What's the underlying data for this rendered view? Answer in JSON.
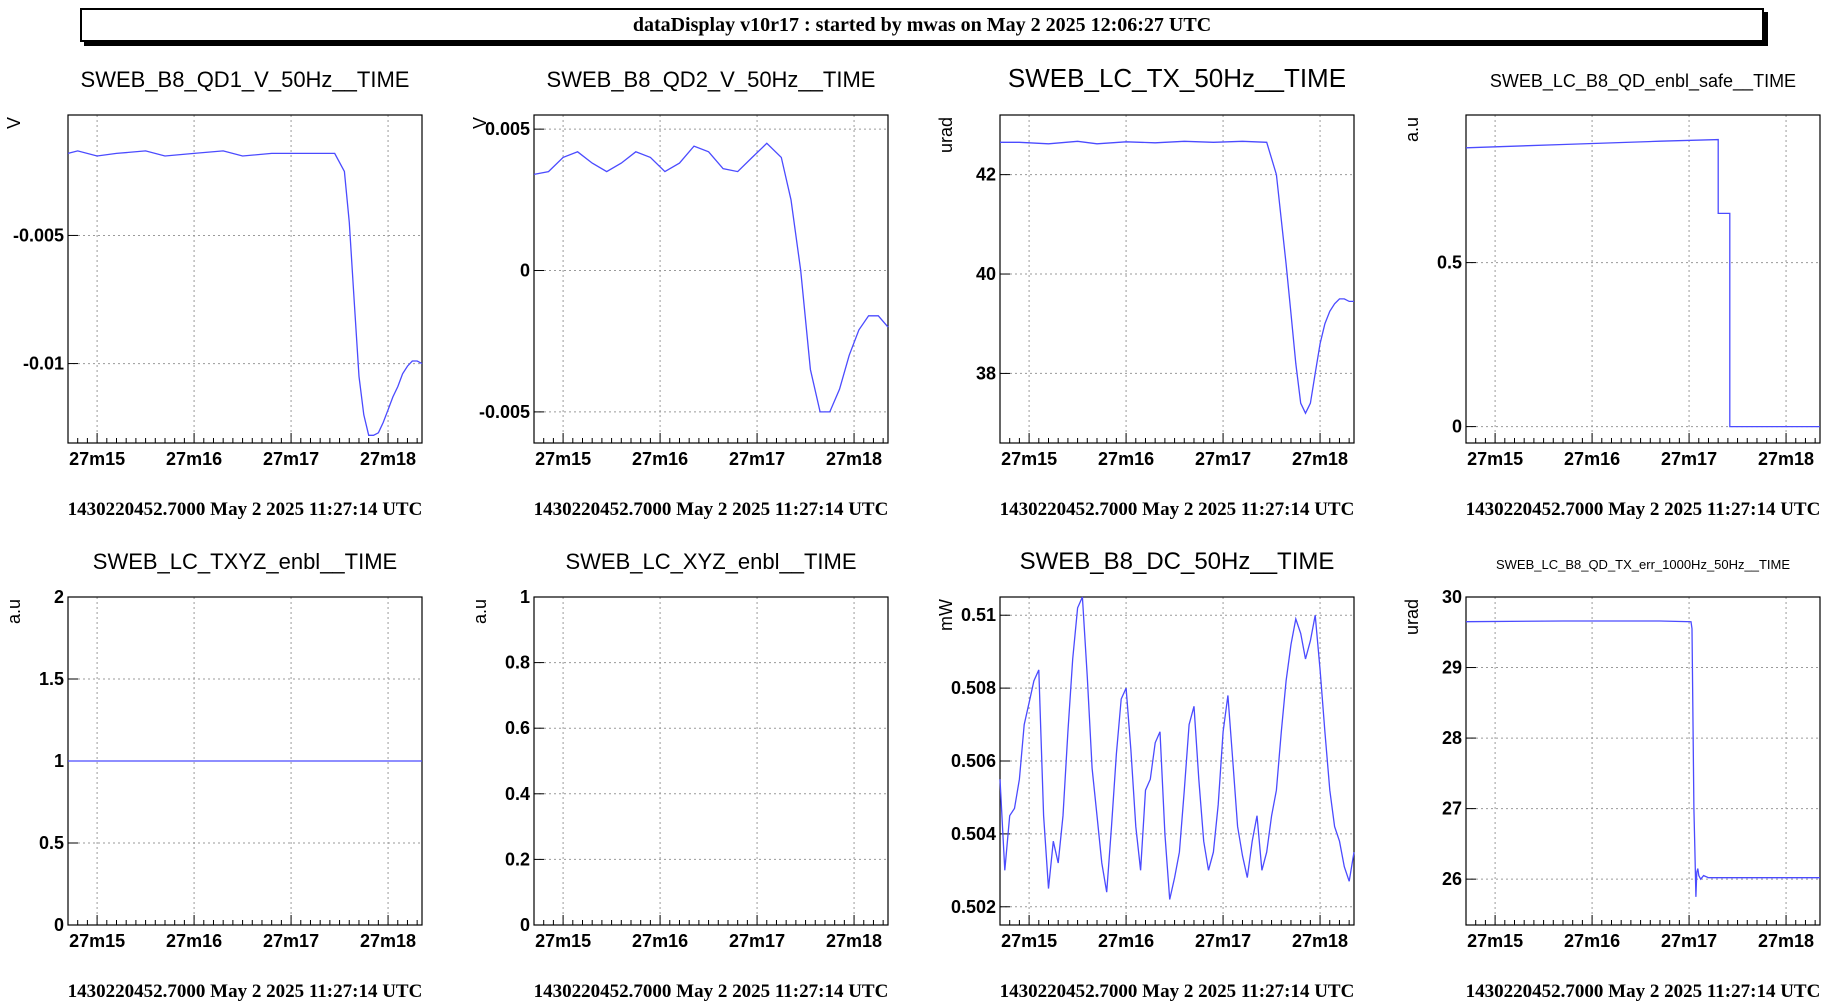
{
  "header": {
    "title": "dataDisplay v10r17 : started by mwas on May  2 2025 12:06:27 UTC"
  },
  "style": {
    "line_color": "#4b4bff",
    "grid_color": "#9a9a9a",
    "axis_color": "#000000"
  },
  "panels": [
    {
      "title": "SWEB_B8_QD1_V_50Hz__TIME",
      "ylabel": "V",
      "footer": "1430220452.7000 May 2 2025 11:27:14 UTC",
      "chart_data": {
        "type": "line",
        "ylim": [
          -0.0131,
          -0.0003
        ],
        "yticks": [
          -0.005,
          -0.01
        ],
        "ytick_labels": [
          "-0.005",
          "-0.01"
        ],
        "xlim": [
          0,
          3.65
        ],
        "xticks": [
          0.3,
          1.3,
          2.3,
          3.3
        ],
        "xtick_labels": [
          "27m15",
          "27m16",
          "27m17",
          "27m18"
        ],
        "grid": true,
        "x": [
          0,
          0.1,
          0.3,
          0.5,
          0.8,
          1.0,
          1.3,
          1.6,
          1.8,
          2.1,
          2.4,
          2.75,
          2.85,
          2.9,
          2.95,
          3.0,
          3.05,
          3.1,
          3.15,
          3.2,
          3.25,
          3.3,
          3.35,
          3.4,
          3.45,
          3.5,
          3.55,
          3.6,
          3.65
        ],
        "y": [
          -0.0018,
          -0.0017,
          -0.0019,
          -0.0018,
          -0.0017,
          -0.0019,
          -0.0018,
          -0.0017,
          -0.0019,
          -0.0018,
          -0.0018,
          -0.0018,
          -0.0025,
          -0.0045,
          -0.0075,
          -0.0105,
          -0.012,
          -0.0128,
          -0.0128,
          -0.0127,
          -0.0123,
          -0.0118,
          -0.0113,
          -0.0109,
          -0.0104,
          -0.0101,
          -0.0099,
          -0.0099,
          -0.01
        ]
      }
    },
    {
      "title": "SWEB_B8_QD2_V_50Hz__TIME",
      "ylabel": "V",
      "footer": "1430220452.7000 May 2 2025 11:27:14 UTC",
      "chart_data": {
        "type": "line",
        "ylim": [
          -0.0061,
          0.0055
        ],
        "yticks": [
          0.005,
          0,
          -0.005
        ],
        "ytick_labels": [
          "0.005",
          "0",
          "-0.005"
        ],
        "xlim": [
          0,
          3.65
        ],
        "xticks": [
          0.3,
          1.3,
          2.3,
          3.3
        ],
        "xtick_labels": [
          "27m15",
          "27m16",
          "27m17",
          "27m18"
        ],
        "grid": true,
        "x": [
          0,
          0.15,
          0.3,
          0.45,
          0.6,
          0.75,
          0.9,
          1.05,
          1.2,
          1.35,
          1.5,
          1.65,
          1.8,
          1.95,
          2.1,
          2.25,
          2.4,
          2.55,
          2.65,
          2.75,
          2.85,
          2.95,
          3.05,
          3.15,
          3.25,
          3.35,
          3.45,
          3.55,
          3.65
        ],
        "y": [
          0.0034,
          0.0035,
          0.004,
          0.0042,
          0.0038,
          0.0035,
          0.0038,
          0.0042,
          0.004,
          0.0035,
          0.0038,
          0.0044,
          0.0042,
          0.0036,
          0.0035,
          0.004,
          0.0045,
          0.004,
          0.0025,
          0.0,
          -0.0035,
          -0.005,
          -0.005,
          -0.0042,
          -0.003,
          -0.0021,
          -0.0016,
          -0.0016,
          -0.002
        ]
      }
    },
    {
      "title": "SWEB_LC_TX_50Hz__TIME",
      "ylabel": "urad",
      "footer": "1430220452.7000 May 2 2025 11:27:14 UTC",
      "chart_data": {
        "type": "line",
        "ylim": [
          36.6,
          43.2
        ],
        "yticks": [
          42,
          40,
          38
        ],
        "ytick_labels": [
          "42",
          "40",
          "38"
        ],
        "xlim": [
          0,
          3.65
        ],
        "xticks": [
          0.3,
          1.3,
          2.3,
          3.3
        ],
        "xtick_labels": [
          "27m15",
          "27m16",
          "27m17",
          "27m18"
        ],
        "grid": true,
        "x": [
          0,
          0.2,
          0.5,
          0.8,
          1.0,
          1.3,
          1.6,
          1.9,
          2.2,
          2.5,
          2.75,
          2.85,
          2.95,
          3.0,
          3.05,
          3.1,
          3.15,
          3.2,
          3.25,
          3.3,
          3.35,
          3.4,
          3.45,
          3.5,
          3.55,
          3.6,
          3.65
        ],
        "y": [
          42.65,
          42.65,
          42.62,
          42.67,
          42.62,
          42.66,
          42.64,
          42.67,
          42.65,
          42.67,
          42.65,
          42.0,
          40.2,
          39.2,
          38.2,
          37.4,
          37.2,
          37.4,
          38.0,
          38.6,
          39.0,
          39.25,
          39.4,
          39.5,
          39.5,
          39.45,
          39.45
        ]
      }
    },
    {
      "title": "SWEB_LC_B8_QD_enbl_safe__TIME",
      "ylabel": "a.u",
      "footer": "1430220452.7000 May 2 2025 11:27:14 UTC",
      "chart_data": {
        "type": "line",
        "ylim": [
          -0.05,
          0.95
        ],
        "yticks": [
          0.5,
          0
        ],
        "ytick_labels": [
          "0.5",
          "0"
        ],
        "xlim": [
          0,
          3.65
        ],
        "xticks": [
          0.3,
          1.3,
          2.3,
          3.3
        ],
        "xtick_labels": [
          "27m15",
          "27m16",
          "27m17",
          "27m18"
        ],
        "grid": true,
        "x": [
          0,
          1.0,
          2.0,
          2.6,
          2.6,
          2.72,
          2.72,
          3.65
        ],
        "y": [
          0.85,
          0.86,
          0.87,
          0.875,
          0.65,
          0.65,
          0.0,
          0.0
        ]
      }
    },
    {
      "title": "SWEB_LC_TXYZ_enbl__TIME",
      "ylabel": "a.u",
      "footer": "1430220452.7000 May 2 2025 11:27:14 UTC",
      "chart_data": {
        "type": "line",
        "ylim": [
          0,
          2
        ],
        "yticks": [
          2,
          1.5,
          1,
          0.5,
          0
        ],
        "ytick_labels": [
          "2",
          "1.5",
          "1",
          "0.5",
          "0"
        ],
        "xlim": [
          0,
          3.65
        ],
        "xticks": [
          0.3,
          1.3,
          2.3,
          3.3
        ],
        "xtick_labels": [
          "27m15",
          "27m16",
          "27m17",
          "27m18"
        ],
        "grid": true,
        "x": [
          0,
          3.65
        ],
        "y": [
          1,
          1
        ]
      }
    },
    {
      "title": "SWEB_LC_XYZ_enbl__TIME",
      "ylabel": "a.u",
      "footer": "1430220452.7000 May 2 2025 11:27:14 UTC",
      "chart_data": {
        "type": "line",
        "ylim": [
          0,
          1
        ],
        "yticks": [
          1,
          0.8,
          0.6,
          0.4,
          0.2,
          0
        ],
        "ytick_labels": [
          "1",
          "0.8",
          "0.6",
          "0.4",
          "0.2",
          "0"
        ],
        "xlim": [
          0,
          3.65
        ],
        "xticks": [
          0.3,
          1.3,
          2.3,
          3.3
        ],
        "xtick_labels": [
          "27m15",
          "27m16",
          "27m17",
          "27m18"
        ],
        "grid": true,
        "x": [],
        "y": []
      }
    },
    {
      "title": "SWEB_B8_DC_50Hz__TIME",
      "ylabel": "mW",
      "footer": "1430220452.7000 May 2 2025 11:27:14 UTC",
      "chart_data": {
        "type": "line",
        "ylim": [
          0.5015,
          0.5105
        ],
        "yticks": [
          0.51,
          0.508,
          0.506,
          0.504,
          0.502
        ],
        "ytick_labels": [
          "0.51",
          "0.508",
          "0.506",
          "0.504",
          "0.502"
        ],
        "xlim": [
          0,
          3.65
        ],
        "xticks": [
          0.3,
          1.3,
          2.3,
          3.3
        ],
        "xtick_labels": [
          "27m15",
          "27m16",
          "27m17",
          "27m18"
        ],
        "grid": true,
        "x": [
          0,
          0.05,
          0.1,
          0.15,
          0.2,
          0.25,
          0.3,
          0.35,
          0.4,
          0.45,
          0.5,
          0.55,
          0.6,
          0.65,
          0.7,
          0.75,
          0.8,
          0.85,
          0.9,
          0.95,
          1.0,
          1.05,
          1.1,
          1.15,
          1.2,
          1.25,
          1.3,
          1.35,
          1.4,
          1.45,
          1.5,
          1.55,
          1.6,
          1.65,
          1.7,
          1.75,
          1.8,
          1.85,
          1.9,
          1.95,
          2.0,
          2.05,
          2.1,
          2.15,
          2.2,
          2.25,
          2.3,
          2.35,
          2.4,
          2.45,
          2.5,
          2.55,
          2.6,
          2.65,
          2.7,
          2.75,
          2.8,
          2.85,
          2.9,
          2.95,
          3.0,
          3.05,
          3.1,
          3.15,
          3.2,
          3.25,
          3.3,
          3.35,
          3.4,
          3.45,
          3.5,
          3.55,
          3.6,
          3.65
        ],
        "y": [
          0.5055,
          0.503,
          0.5045,
          0.5047,
          0.5055,
          0.507,
          0.5076,
          0.5082,
          0.5085,
          0.5045,
          0.5025,
          0.5038,
          0.5032,
          0.5045,
          0.5068,
          0.5088,
          0.5102,
          0.5107,
          0.5083,
          0.5058,
          0.5045,
          0.5032,
          0.5024,
          0.5042,
          0.5062,
          0.5077,
          0.508,
          0.5063,
          0.5042,
          0.503,
          0.5052,
          0.5055,
          0.5065,
          0.5068,
          0.504,
          0.5022,
          0.5028,
          0.5035,
          0.5052,
          0.507,
          0.5075,
          0.5055,
          0.5038,
          0.503,
          0.5035,
          0.5048,
          0.5068,
          0.5078,
          0.506,
          0.5042,
          0.5034,
          0.5028,
          0.5038,
          0.5045,
          0.503,
          0.5035,
          0.5045,
          0.5052,
          0.5068,
          0.5082,
          0.5092,
          0.5099,
          0.5095,
          0.5088,
          0.5093,
          0.51,
          0.5085,
          0.5068,
          0.5052,
          0.5042,
          0.5038,
          0.5031,
          0.5027,
          0.5035
        ]
      }
    },
    {
      "title": "SWEB_LC_B8_QD_TX_err_1000Hz_50Hz__TIME",
      "ylabel": "urad",
      "footer": "1430220452.7000 May 2 2025 11:27:14 UTC",
      "chart_data": {
        "type": "line",
        "ylim": [
          25.35,
          30.0
        ],
        "yticks": [
          30,
          29,
          28,
          27,
          26
        ],
        "ytick_labels": [
          "30",
          "29",
          "28",
          "27",
          "26"
        ],
        "xlim": [
          0,
          3.65
        ],
        "xticks": [
          0.3,
          1.3,
          2.3,
          3.3
        ],
        "xtick_labels": [
          "27m15",
          "27m16",
          "27m17",
          "27m18"
        ],
        "grid": true,
        "x": [
          0,
          1.0,
          2.0,
          2.32,
          2.33,
          2.35,
          2.36,
          2.37,
          2.38,
          2.39,
          2.4,
          2.42,
          2.45,
          2.5,
          3.65
        ],
        "y": [
          29.65,
          29.66,
          29.66,
          29.65,
          29.55,
          27.0,
          26.4,
          25.75,
          26.1,
          26.15,
          26.05,
          26.0,
          26.05,
          26.02,
          26.02
        ]
      }
    }
  ]
}
